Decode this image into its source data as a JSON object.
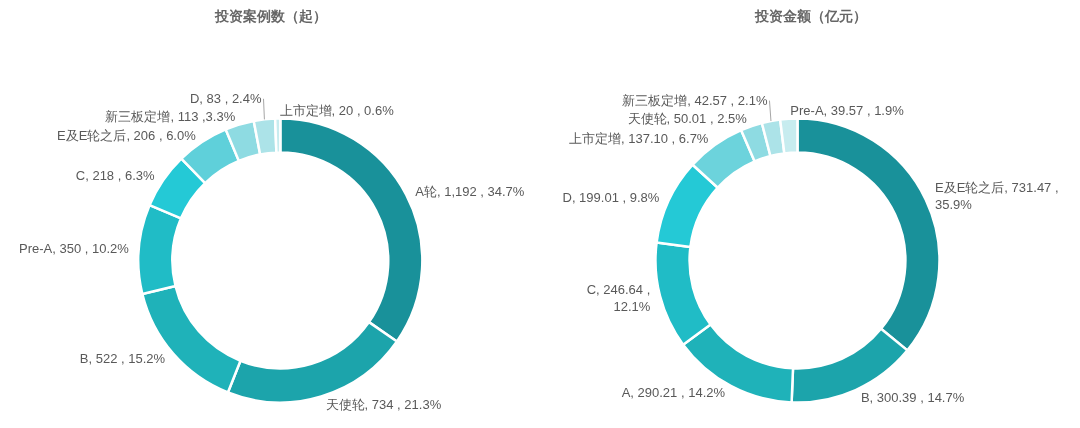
{
  "chart_data": [
    {
      "type": "donut",
      "title": "投资案例数（起）",
      "categories": [
        "A轮",
        "天使轮",
        "B",
        "Pre-A",
        "C",
        "E及E轮之后",
        "新三板定增",
        "D",
        "上市定增"
      ],
      "values": [
        1192,
        734,
        522,
        350,
        218,
        206,
        113,
        83,
        20
      ],
      "colors": [
        "#19919a",
        "#1ca4ab",
        "#1fb2b9",
        "#20bcc6",
        "#24c9d6",
        "#5fd0da",
        "#8edbe2",
        "#ace3e8",
        "#c7ecef"
      ],
      "value_labels": [
        "1,192 , 34.7%",
        "734 , 21.3%",
        "522 , 15.2%",
        "350 , 10.2%",
        "218 , 6.3%",
        "206 , 6.0%",
        "113 ,3.3%",
        "83 , 2.4%",
        "20 , 0.6%"
      ]
    },
    {
      "type": "donut",
      "title": "投资金额（亿元）",
      "categories": [
        "E及E轮之后",
        "B",
        "A",
        "C",
        "D",
        "上市定增",
        "天使轮",
        "新三板定增",
        "Pre-A"
      ],
      "values": [
        731.47,
        300.39,
        290.21,
        246.64,
        199.01,
        137.1,
        50.01,
        42.57,
        39.57
      ],
      "colors": [
        "#19919a",
        "#1ca4ab",
        "#1fb2b9",
        "#20bcc6",
        "#24c9d6",
        "#6cd3dc",
        "#8edbe2",
        "#ace3e8",
        "#c7ecef"
      ],
      "value_labels": [
        "731.47 , 35.9%",
        "300.39 , 14.7%",
        "290.21 , 14.2%",
        "246.64 , 12.1%",
        "199.01 , 9.8%",
        "137.10 , 6.7%",
        "50.01 , 2.5%",
        "42.57 , 2.1%",
        "39.57 , 1.9%"
      ]
    }
  ]
}
